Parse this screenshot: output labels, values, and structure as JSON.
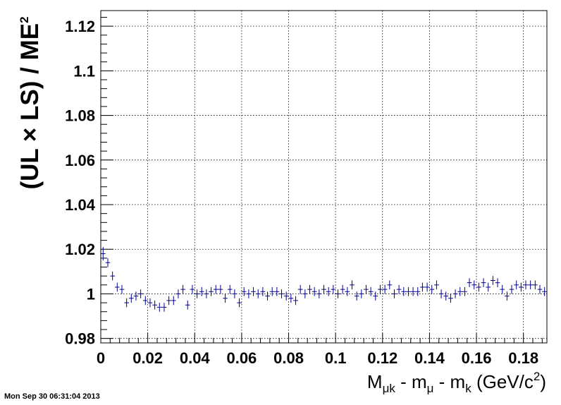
{
  "chart_data": {
    "type": "scatter",
    "title": "",
    "xlabel": "",
    "ylabel_parts": {
      "a": "(UL ",
      "times": "×",
      "b": " LS) / ME",
      "sup": "2"
    },
    "xlabel_parts": {
      "M": "M",
      "M_sub": "μk",
      "mid1": " - m",
      "m1_sub": "μ",
      "mid2": " - m",
      "m2_sub": "k",
      "unit": " (GeV/c",
      "unit_sup": "2",
      "close": ")"
    },
    "xlim": [
      0,
      0.19
    ],
    "ylim": [
      0.978,
      1.127
    ],
    "grid": true,
    "x_ticks": [
      0,
      0.02,
      0.04,
      0.06,
      0.08,
      0.1,
      0.12,
      0.14,
      0.16,
      0.18
    ],
    "x_tick_labels": [
      "0",
      "0.02",
      "0.04",
      "0.06",
      "0.08",
      "0.1",
      "0.12",
      "0.14",
      "0.16",
      "0.18"
    ],
    "y_ticks": [
      0.98,
      1.0,
      1.02,
      1.04,
      1.06,
      1.08,
      1.1,
      1.12
    ],
    "y_tick_labels": [
      "0.98",
      "1",
      "1.02",
      "1.04",
      "1.06",
      "1.08",
      "1.1",
      "1.12"
    ],
    "bin_width": 0.002,
    "marker_color": "#00008b",
    "series": [
      {
        "x": [
          0.001,
          0.003,
          0.005,
          0.007,
          0.009,
          0.011,
          0.013,
          0.015,
          0.017,
          0.019,
          0.021,
          0.023,
          0.025,
          0.027,
          0.029,
          0.031,
          0.033,
          0.035,
          0.037,
          0.039,
          0.041,
          0.043,
          0.045,
          0.047,
          0.049,
          0.051,
          0.053,
          0.055,
          0.057,
          0.059,
          0.061,
          0.063,
          0.065,
          0.067,
          0.069,
          0.071,
          0.073,
          0.075,
          0.077,
          0.079,
          0.081,
          0.083,
          0.085,
          0.087,
          0.089,
          0.091,
          0.093,
          0.095,
          0.097,
          0.099,
          0.101,
          0.103,
          0.105,
          0.107,
          0.109,
          0.111,
          0.113,
          0.115,
          0.117,
          0.119,
          0.121,
          0.123,
          0.125,
          0.127,
          0.129,
          0.131,
          0.133,
          0.135,
          0.137,
          0.139,
          0.141,
          0.143,
          0.145,
          0.147,
          0.149,
          0.151,
          0.153,
          0.155,
          0.157,
          0.159,
          0.161,
          0.163,
          0.165,
          0.167,
          0.169,
          0.171,
          0.173,
          0.175,
          0.177,
          0.179,
          0.181,
          0.183,
          0.185,
          0.187,
          0.189
        ],
        "y": [
          1.018,
          1.014,
          1.008,
          1.003,
          1.002,
          0.996,
          0.998,
          0.999,
          1.0,
          0.997,
          0.996,
          0.995,
          0.994,
          0.994,
          0.997,
          0.997,
          1.0,
          1.002,
          0.995,
          1.002,
          1.0,
          1.001,
          1.0,
          1.001,
          1.002,
          1.002,
          0.998,
          1.002,
          1.0,
          0.996,
          1.001,
          1.0,
          1.001,
          1.0,
          1.001,
          0.999,
          1.001,
          1.001,
          1.0,
          0.999,
          0.998,
          0.997,
          1.002,
          1.0,
          1.002,
          1.001,
          1.0,
          1.002,
          1.001,
          1.002,
          1.0,
          1.002,
          1.001,
          1.004,
          0.999,
          1.0,
          1.002,
          1.001,
          0.999,
          1.002,
          1.002,
          1.004,
          1.0,
          1.002,
          1.001,
          1.001,
          1.001,
          1.001,
          1.003,
          1.003,
          1.002,
          1.004,
          1.0,
          0.999,
          0.998,
          1.0,
          1.001,
          1.001,
          1.005,
          1.004,
          1.003,
          1.005,
          1.003,
          1.006,
          1.005,
          1.002,
          0.999,
          1.002,
          1.004,
          1.003,
          1.004,
          1.004,
          1.004,
          1.002,
          1.001
        ],
        "err": [
          0.003,
          0.002,
          0.002,
          0.002,
          0.002,
          0.002,
          0.002,
          0.002,
          0.002,
          0.002,
          0.002,
          0.002,
          0.002,
          0.002,
          0.002,
          0.002,
          0.002,
          0.002,
          0.002,
          0.002,
          0.002,
          0.002,
          0.002,
          0.002,
          0.002,
          0.002,
          0.002,
          0.002,
          0.002,
          0.002,
          0.002,
          0.002,
          0.002,
          0.002,
          0.002,
          0.002,
          0.002,
          0.002,
          0.002,
          0.002,
          0.002,
          0.002,
          0.002,
          0.002,
          0.002,
          0.002,
          0.002,
          0.002,
          0.002,
          0.002,
          0.002,
          0.002,
          0.002,
          0.002,
          0.002,
          0.002,
          0.002,
          0.002,
          0.002,
          0.002,
          0.002,
          0.002,
          0.002,
          0.002,
          0.002,
          0.002,
          0.002,
          0.002,
          0.002,
          0.002,
          0.002,
          0.002,
          0.002,
          0.002,
          0.002,
          0.002,
          0.002,
          0.002,
          0.002,
          0.002,
          0.002,
          0.002,
          0.002,
          0.002,
          0.002,
          0.002,
          0.002,
          0.002,
          0.002,
          0.002,
          0.002,
          0.002,
          0.002,
          0.002,
          0.002
        ]
      }
    ]
  },
  "footer": {
    "timestamp": "Mon Sep 30 06:31:04 2013"
  }
}
